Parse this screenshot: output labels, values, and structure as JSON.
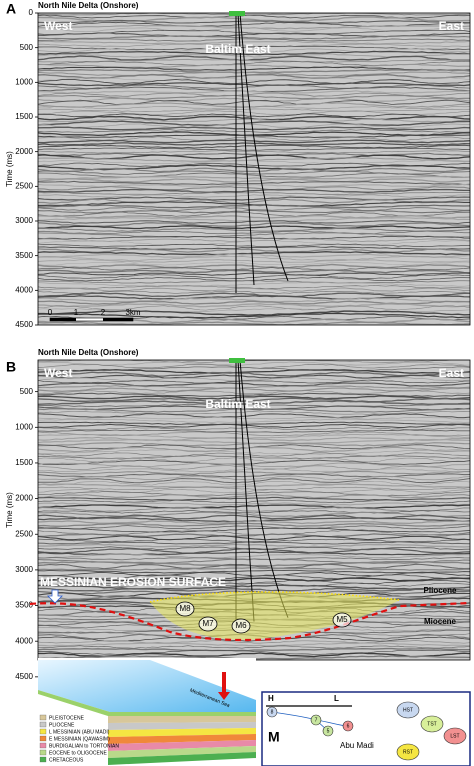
{
  "panels": [
    {
      "label": "A",
      "title": "North Nile Delta (Onshore)",
      "y_axis_label": "Time (ms)",
      "yticks": [
        0,
        500,
        1000,
        1500,
        2000,
        2500,
        3000,
        3500,
        4000,
        4500
      ],
      "west": "West",
      "east": "East",
      "well": "Baltim East",
      "scale_bar": [
        "0",
        "1",
        "2",
        "3km"
      ]
    },
    {
      "label": "B",
      "title": "North Nile Delta (Onshore)",
      "y_axis_label": "Time (ms)",
      "yticks": [
        500,
        1000,
        1500,
        2000,
        2500,
        3000,
        3500,
        4000,
        4500
      ],
      "west": "West",
      "east": "East",
      "well": "Baltim East",
      "surface": "MESSINIAN EROSION SURFACE",
      "upper_unit": "Pliocene",
      "lower_unit": "Miocene",
      "markers": [
        "M8",
        "M7",
        "M6",
        "M5"
      ]
    }
  ],
  "inset": {
    "sea": "Mediterranean Sea",
    "legend": [
      "PLEISTOCENE",
      "PLIOCENE",
      "L MESSINIAN (ABU MADI)",
      "E MESSINIAN (QAWASIM)",
      "BURDIGALIAN to TORTONIAN",
      "EOCENE to OLIGOCENE",
      "CRETACEOUS"
    ]
  },
  "sequence_diagram": {
    "high": "H",
    "low": "L",
    "unit": "M",
    "points": [
      "8",
      "7",
      "5",
      "6"
    ],
    "tracts": [
      "HST",
      "TST",
      "LST",
      "RST"
    ],
    "formation": "Abu Madi"
  }
}
